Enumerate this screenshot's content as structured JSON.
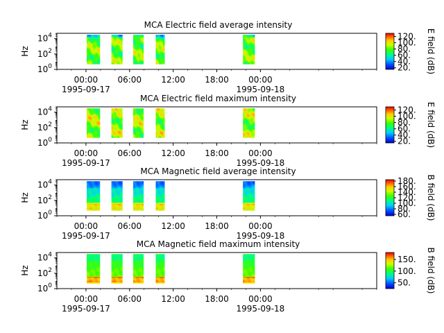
{
  "chart_data": [
    {
      "type": "heatmap",
      "title": "MCA  Electric field average intensity",
      "ylabel": "Hz",
      "colorbar_label": "E field (dB)",
      "colorbar_ticks": [
        "20.",
        "40.",
        "60.",
        "80.",
        "100.",
        "120."
      ],
      "colorbar_range": [
        15,
        130
      ],
      "y_ticks": [
        {
          "exp": 0,
          "label": "10",
          "sup": "0"
        },
        {
          "exp": 2,
          "label": "10",
          "sup": "2"
        },
        {
          "exp": 4,
          "label": "10",
          "sup": "4"
        }
      ],
      "y_range": [
        0,
        4.7
      ],
      "x_range_hours": [
        -4,
        40
      ],
      "x_ticks": [
        {
          "hour": 0,
          "time": "00:00",
          "date": "1995-09-17"
        },
        {
          "hour": 6,
          "time": "06:00",
          "date": ""
        },
        {
          "hour": 12,
          "time": "12:00",
          "date": ""
        },
        {
          "hour": 18,
          "time": "18:00",
          "date": ""
        },
        {
          "hour": 24,
          "time": "00:00",
          "date": "1995-09-18"
        }
      ],
      "blocks_hours": [
        [
          0.1,
          1.9
        ],
        [
          3.5,
          5.0
        ],
        [
          6.5,
          7.9
        ],
        [
          9.6,
          10.8
        ],
        [
          21.6,
          23.2
        ]
      ],
      "freq_range_exp": [
        0.7,
        4.5
      ],
      "pattern": "efield"
    },
    {
      "type": "heatmap",
      "title": "MCA  Electric field maximum intensity",
      "ylabel": "Hz",
      "colorbar_label": "E field (dB)",
      "colorbar_ticks": [
        "20.",
        "40.",
        "60.",
        "80.",
        "100.",
        "120."
      ],
      "colorbar_range": [
        15,
        130
      ],
      "y_ticks": [
        {
          "exp": 0,
          "label": "10",
          "sup": "0"
        },
        {
          "exp": 2,
          "label": "10",
          "sup": "2"
        },
        {
          "exp": 4,
          "label": "10",
          "sup": "4"
        }
      ],
      "y_range": [
        0,
        4.7
      ],
      "x_range_hours": [
        -4,
        40
      ],
      "x_ticks": [
        {
          "hour": 0,
          "time": "00:00",
          "date": "1995-09-17"
        },
        {
          "hour": 6,
          "time": "06:00",
          "date": ""
        },
        {
          "hour": 12,
          "time": "12:00",
          "date": ""
        },
        {
          "hour": 18,
          "time": "18:00",
          "date": ""
        },
        {
          "hour": 24,
          "time": "00:00",
          "date": "1995-09-18"
        }
      ],
      "blocks_hours": [
        [
          0.1,
          1.9
        ],
        [
          3.5,
          5.0
        ],
        [
          6.5,
          7.9
        ],
        [
          9.6,
          10.8
        ],
        [
          21.6,
          23.2
        ]
      ],
      "freq_range_exp": [
        0.7,
        4.5
      ],
      "pattern": "efield-max"
    },
    {
      "type": "heatmap",
      "title": "MCA  Magnetic field average intensity",
      "ylabel": "Hz",
      "colorbar_label": "B field (dB)",
      "colorbar_ticks": [
        "60.",
        "80.",
        "100.",
        "120.",
        "140.",
        "160.",
        "180."
      ],
      "colorbar_range": [
        55,
        185
      ],
      "y_ticks": [
        {
          "exp": 0,
          "label": "10",
          "sup": "0"
        },
        {
          "exp": 2,
          "label": "10",
          "sup": "2"
        },
        {
          "exp": 4,
          "label": "10",
          "sup": "4"
        }
      ],
      "y_range": [
        0,
        4.7
      ],
      "x_range_hours": [
        -4,
        40
      ],
      "x_ticks": [
        {
          "hour": 0,
          "time": "00:00",
          "date": "1995-09-17"
        },
        {
          "hour": 6,
          "time": "06:00",
          "date": ""
        },
        {
          "hour": 12,
          "time": "12:00",
          "date": ""
        },
        {
          "hour": 18,
          "time": "18:00",
          "date": ""
        },
        {
          "hour": 24,
          "time": "00:00",
          "date": "1995-09-18"
        }
      ],
      "blocks_hours": [
        [
          0.1,
          1.9
        ],
        [
          3.5,
          5.0
        ],
        [
          6.5,
          7.9
        ],
        [
          9.6,
          10.8
        ],
        [
          21.6,
          23.2
        ]
      ],
      "freq_range_exp": [
        0.7,
        4.5
      ],
      "pattern": "bfield"
    },
    {
      "type": "heatmap",
      "title": "MCA  Magnetic field maximum intensity",
      "ylabel": "Hz",
      "colorbar_label": "B field (dB)",
      "colorbar_ticks": [
        "50.",
        "100.",
        "150."
      ],
      "colorbar_range": [
        25,
        180
      ],
      "y_ticks": [
        {
          "exp": 0,
          "label": "10",
          "sup": "0"
        },
        {
          "exp": 2,
          "label": "10",
          "sup": "2"
        },
        {
          "exp": 4,
          "label": "10",
          "sup": "4"
        }
      ],
      "y_range": [
        0,
        4.7
      ],
      "x_range_hours": [
        -4,
        40
      ],
      "x_ticks": [
        {
          "hour": 0,
          "time": "00:00",
          "date": "1995-09-17"
        },
        {
          "hour": 6,
          "time": "06:00",
          "date": ""
        },
        {
          "hour": 12,
          "time": "12:00",
          "date": ""
        },
        {
          "hour": 18,
          "time": "18:00",
          "date": ""
        },
        {
          "hour": 24,
          "time": "00:00",
          "date": "1995-09-18"
        }
      ],
      "blocks_hours": [
        [
          0.1,
          1.9
        ],
        [
          3.5,
          5.0
        ],
        [
          6.5,
          7.9
        ],
        [
          9.6,
          10.8
        ],
        [
          21.6,
          23.2
        ]
      ],
      "freq_range_exp": [
        0.7,
        4.5
      ],
      "pattern": "bfield-max"
    }
  ]
}
